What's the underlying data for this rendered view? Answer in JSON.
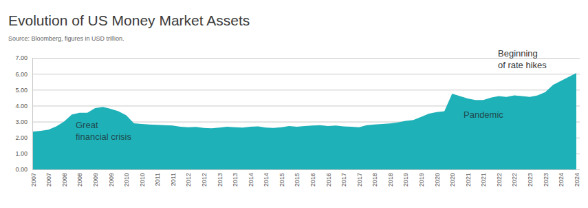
{
  "chart_data": {
    "type": "area",
    "title": "Evolution of US Money Market Assets",
    "subtitle": "Source: Bloomberg, figures in USD trillion.",
    "categories": [
      "2007",
      null,
      "2007",
      null,
      "2008",
      null,
      "2008",
      null,
      "2009",
      null,
      "2009",
      null,
      "2010",
      null,
      "2010",
      null,
      "2011",
      null,
      "2011",
      null,
      "2012",
      null,
      "2012",
      null,
      "2013",
      null,
      "2013",
      null,
      "2014",
      null,
      "2014",
      null,
      "2015",
      null,
      "2015",
      null,
      "2016",
      null,
      "2016",
      null,
      "2017",
      null,
      "2017",
      null,
      "2018",
      null,
      "2018",
      null,
      "2019",
      null,
      "2019",
      null,
      "2020",
      null,
      "2020",
      null,
      "2021",
      null,
      "2021",
      null,
      "2022",
      null,
      "2022",
      null,
      "2023",
      null,
      "2023",
      null,
      "2024",
      null,
      "2024"
    ],
    "values": [
      2.38,
      2.42,
      2.5,
      2.7,
      3.0,
      3.45,
      3.55,
      3.55,
      3.85,
      3.92,
      3.8,
      3.65,
      3.4,
      2.9,
      2.85,
      2.82,
      2.8,
      2.78,
      2.75,
      2.68,
      2.65,
      2.67,
      2.6,
      2.58,
      2.62,
      2.68,
      2.65,
      2.63,
      2.68,
      2.7,
      2.62,
      2.6,
      2.65,
      2.72,
      2.68,
      2.72,
      2.75,
      2.78,
      2.72,
      2.75,
      2.7,
      2.68,
      2.65,
      2.78,
      2.82,
      2.85,
      2.88,
      2.95,
      3.05,
      3.1,
      3.3,
      3.5,
      3.6,
      3.65,
      4.75,
      4.6,
      4.45,
      4.35,
      4.35,
      4.5,
      4.6,
      4.55,
      4.65,
      4.6,
      4.55,
      4.65,
      4.85,
      5.3,
      5.55,
      5.8,
      6.05
    ],
    "color": "#1fb1b8",
    "ylim": [
      0,
      7
    ],
    "yticks": [
      {
        "value": 0,
        "label": "0.00"
      },
      {
        "value": 1,
        "label": "1.00"
      },
      {
        "value": 2,
        "label": "2.00"
      },
      {
        "value": 3,
        "label": "3.00"
      },
      {
        "value": 4,
        "label": "4.00"
      },
      {
        "value": 5,
        "label": "5.00"
      },
      {
        "value": 6,
        "label": "6.00"
      },
      {
        "value": 7,
        "label": "7.00"
      }
    ],
    "grid": true,
    "annotations": [
      [
        "Great",
        "financial crisis"
      ],
      [
        "Pandemic"
      ],
      [
        "Beginning",
        "of rate hikes"
      ]
    ]
  }
}
